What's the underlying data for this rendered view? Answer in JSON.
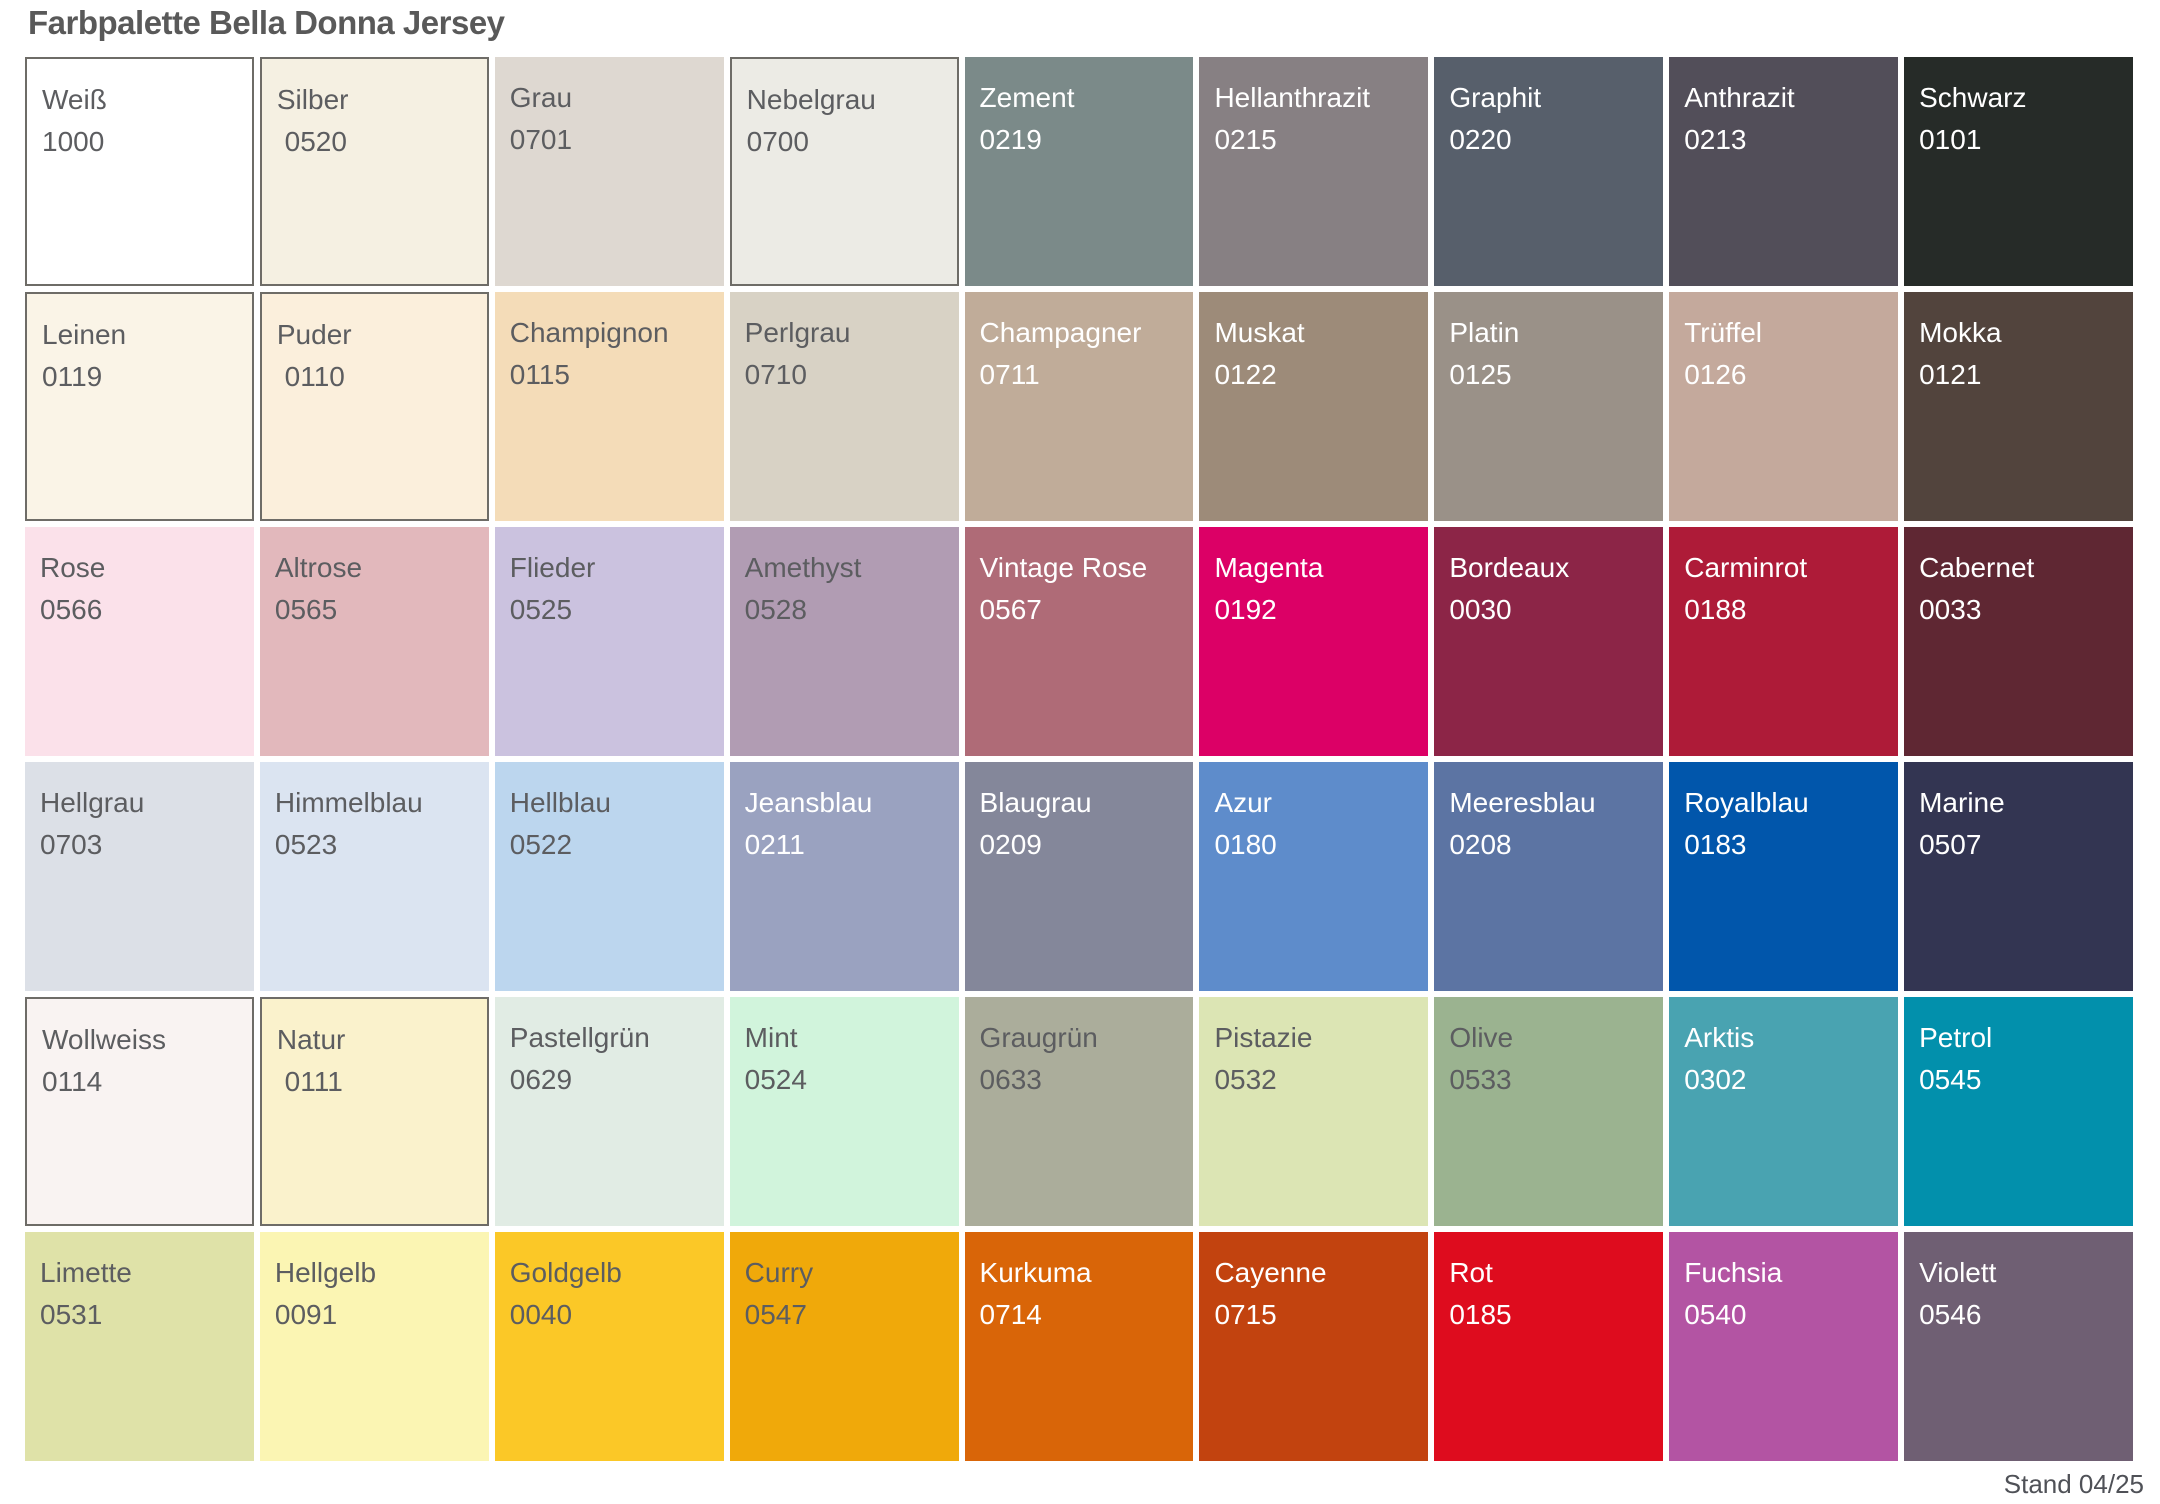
{
  "title": "Farbpalette Bella Donna Jersey",
  "footer": "Stand 04/25",
  "palette": {
    "columns": 9,
    "rows": 6,
    "border_color": "#6E6C67",
    "dark_label_color": "#5C5D60",
    "light_label_color": "#FFFFFF",
    "swatches": [
      {
        "name": "Weiß",
        "code": "1000",
        "color": "#FFFFFF",
        "label": "#5C5D60",
        "border": true
      },
      {
        "name": "Silber",
        "code": " 0520",
        "color": "#F5F0E2",
        "label": "#5C5D60",
        "border": true
      },
      {
        "name": "Grau",
        "code": "0701",
        "color": "#DED8D1",
        "label": "#5C5D60",
        "border": false
      },
      {
        "name": "Nebelgrau",
        "code": "0700",
        "color": "#ECEBE5",
        "label": "#5C5D60",
        "border": true
      },
      {
        "name": "Zement",
        "code": "0219",
        "color": "#7B8A89",
        "label": "#FFFFFF",
        "border": false
      },
      {
        "name": "Hellanthrazit",
        "code": "0215",
        "color": "#878083",
        "label": "#FFFFFF",
        "border": false
      },
      {
        "name": "Graphit",
        "code": "0220",
        "color": "#575F6B",
        "label": "#FFFFFF",
        "border": false
      },
      {
        "name": "Anthrazit",
        "code": "0213",
        "color": "#524E59",
        "label": "#FFFFFF",
        "border": false
      },
      {
        "name": "Schwarz",
        "code": "0101",
        "color": "#262B28",
        "label": "#FFFFFF",
        "border": false
      },
      {
        "name": "Leinen",
        "code": "0119",
        "color": "#FAF4E7",
        "label": "#5C5D60",
        "border": true
      },
      {
        "name": "Puder",
        "code": " 0110",
        "color": "#FBEFDC",
        "label": "#5C5D60",
        "border": true
      },
      {
        "name": "Champignon",
        "code": "0115",
        "color": "#F4DCB8",
        "label": "#5C5D60",
        "border": false
      },
      {
        "name": "Perlgrau",
        "code": "0710",
        "color": "#D8D2C5",
        "label": "#5C5D60",
        "border": false
      },
      {
        "name": "Champagner",
        "code": "0711",
        "color": "#C0AC99",
        "label": "#FFFFFF",
        "border": false
      },
      {
        "name": "Muskat",
        "code": "0122",
        "color": "#9D8B79",
        "label": "#FFFFFF",
        "border": false
      },
      {
        "name": "Platin",
        "code": "0125",
        "color": "#9A9188",
        "label": "#FFFFFF",
        "border": false
      },
      {
        "name": "Trüffel",
        "code": "0126",
        "color": "#C4A99C",
        "label": "#FFFFFF",
        "border": false
      },
      {
        "name": "Mokka",
        "code": "0121",
        "color": "#52443D",
        "label": "#FFFFFF",
        "border": false
      },
      {
        "name": "Rose",
        "code": "0566",
        "color": "#FBE1EA",
        "label": "#5C5D60",
        "border": false
      },
      {
        "name": "Altrose",
        "code": "0565",
        "color": "#E2B8BC",
        "label": "#5C5D60",
        "border": false
      },
      {
        "name": "Flieder",
        "code": "0525",
        "color": "#CBC2DF",
        "label": "#5C5D60",
        "border": false
      },
      {
        "name": "Amethyst",
        "code": "0528",
        "color": "#B19CB3",
        "label": "#5C5D60",
        "border": false
      },
      {
        "name": "Vintage Rose",
        "code": "0567",
        "color": "#AF6B77",
        "label": "#FFFFFF",
        "border": false
      },
      {
        "name": "Magenta",
        "code": "0192",
        "color": "#DC0066",
        "label": "#FFFFFF",
        "border": false
      },
      {
        "name": "Bordeaux",
        "code": "0030",
        "color": "#8C2547",
        "label": "#FFFFFF",
        "border": false
      },
      {
        "name": "Carminrot",
        "code": "0188",
        "color": "#AE1B38",
        "label": "#FFFFFF",
        "border": false
      },
      {
        "name": "Cabernet",
        "code": "0033",
        "color": "#5F2733",
        "label": "#FFFFFF",
        "border": false
      },
      {
        "name": "Hellgrau",
        "code": "0703",
        "color": "#DCE0E7",
        "label": "#5C5D60",
        "border": false
      },
      {
        "name": "Himmelblau",
        "code": "0523",
        "color": "#DBE4F1",
        "label": "#5C5D60",
        "border": false
      },
      {
        "name": "Hellblau",
        "code": "0522",
        "color": "#BCD6EE",
        "label": "#5C5D60",
        "border": false
      },
      {
        "name": "Jeansblau",
        "code": "0211",
        "color": "#9AA2C0",
        "label": "#FFFFFF",
        "border": false
      },
      {
        "name": "Blaugrau",
        "code": "0209",
        "color": "#84879A",
        "label": "#FFFFFF",
        "border": false
      },
      {
        "name": "Azur",
        "code": "0180",
        "color": "#5E8CCB",
        "label": "#FFFFFF",
        "border": false
      },
      {
        "name": "Meeresblau",
        "code": "0208",
        "color": "#5C74A3",
        "label": "#FFFFFF",
        "border": false
      },
      {
        "name": "Royalblau",
        "code": "0183",
        "color": "#0156AB",
        "label": "#FFFFFF",
        "border": false
      },
      {
        "name": "Marine",
        "code": "0507",
        "color": "#333552",
        "label": "#FFFFFF",
        "border": false
      },
      {
        "name": "Wollweiss",
        "code": "0114",
        "color": "#F9F3F2",
        "label": "#5C5D60",
        "border": true
      },
      {
        "name": "Natur",
        "code": " 0111",
        "color": "#FAF2CC",
        "label": "#5C5D60",
        "border": true
      },
      {
        "name": "Pastellgrün",
        "code": "0629",
        "color": "#E1ECE4",
        "label": "#5C5D60",
        "border": false
      },
      {
        "name": "Mint",
        "code": "0524",
        "color": "#D1F4DC",
        "label": "#5C5D60",
        "border": false
      },
      {
        "name": "Graugrün",
        "code": "0633",
        "color": "#ABAD9B",
        "label": "#5C5D60",
        "border": false
      },
      {
        "name": "Pistazie",
        "code": "0532",
        "color": "#DCE5B4",
        "label": "#5C5D60",
        "border": false
      },
      {
        "name": "Olive",
        "code": "0533",
        "color": "#9BB390",
        "label": "#5C5D60",
        "border": false
      },
      {
        "name": "Arktis",
        "code": "0302",
        "color": "#49A3B1",
        "label": "#FFFFFF",
        "border": false
      },
      {
        "name": "Petrol",
        "code": "0545",
        "color": "#0290AC",
        "label": "#FFFFFF",
        "border": false
      },
      {
        "name": "Limette",
        "code": "0531",
        "color": "#DFE2A8",
        "label": "#5C5D60",
        "border": false
      },
      {
        "name": "Hellgelb",
        "code": "0091",
        "color": "#FBF5B3",
        "label": "#5C5D60",
        "border": false
      },
      {
        "name": "Goldgelb",
        "code": "0040",
        "color": "#FBC827",
        "label": "#5C5D60",
        "border": false
      },
      {
        "name": "Curry",
        "code": "0547",
        "color": "#F0A90A",
        "label": "#5C5D60",
        "border": false
      },
      {
        "name": "Kurkuma",
        "code": "0714",
        "color": "#D96508",
        "label": "#FFFFFF",
        "border": false
      },
      {
        "name": "Cayenne",
        "code": "0715",
        "color": "#C2430F",
        "label": "#FFFFFF",
        "border": false
      },
      {
        "name": "Rot",
        "code": "0185",
        "color": "#DE0C1E",
        "label": "#FFFFFF",
        "border": false
      },
      {
        "name": "Fuchsia",
        "code": "0540",
        "color": "#B354A3",
        "label": "#FFFFFF",
        "border": false
      },
      {
        "name": "Violett",
        "code": "0546",
        "color": "#6F5F73",
        "label": "#FFFFFF",
        "border": false
      }
    ]
  }
}
